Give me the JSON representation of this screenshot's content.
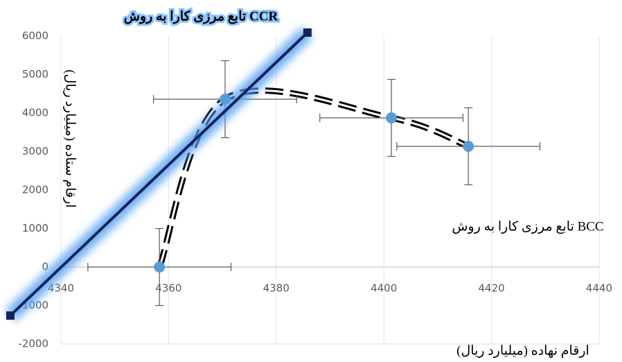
{
  "chart_data": {
    "type": "scatter",
    "title": "تابع مرزی کارا به روش CCR",
    "annotation": "تابع مرزی کارا به روش BCC",
    "x_label": "ارقام نهاده (میلیارد ریال)",
    "y_label": "ارقام ستاده (میلیارد ریال)",
    "xlim": [
      4340,
      4440
    ],
    "xticks": [
      4340,
      4360,
      4380,
      4400,
      4420,
      4440
    ],
    "ylim": [
      -2000,
      6000
    ],
    "yticks": [
      -2000,
      -1000,
      0,
      1000,
      2000,
      3000,
      4000,
      5000,
      6000
    ],
    "grid": "x",
    "series": [
      {
        "color": "#5b9bd5",
        "x": [
          4358.3,
          4370.5,
          4401.4,
          4415.7
        ],
        "values": [
          0,
          4360,
          3874,
          3135
        ],
        "x_error": [
          13.3,
          13.3,
          13.3,
          13.3
        ],
        "y_error": [
          1000,
          1000,
          1000,
          1000
        ],
        "curve": "dashed"
      },
      {
        "color": "#14225a",
        "x": [
          4330.6,
          4385.8
        ],
        "values": [
          -1261,
          6090
        ],
        "glow": "#4d9cf0"
      }
    ]
  }
}
